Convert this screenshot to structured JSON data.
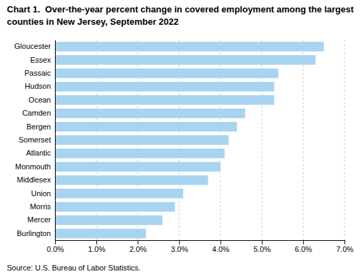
{
  "chart_data": {
    "type": "bar",
    "orientation": "horizontal",
    "title": "Chart 1.  Over-the-year percent change in covered employment among the largest",
    "subtitle": "counties in New Jersey, September 2022",
    "annotations": [
      "Source: U.S. Bureau of Labor Statistics."
    ],
    "categories": [
      "Burlington",
      "Mercer",
      "Morris",
      "Union",
      "Middlesex",
      "Monmouth",
      "Atlantic",
      "Somerset",
      "Bergen",
      "Camden",
      "Ocean",
      "Hudson",
      "Passaic",
      "Essex",
      "Gloucester"
    ],
    "values": [
      0.022,
      0.026,
      0.029,
      0.031,
      0.037,
      0.04,
      0.041,
      0.042,
      0.044,
      0.046,
      0.053,
      0.053,
      0.054,
      0.063,
      0.065
    ],
    "color": "#a8d4f0",
    "xlim": [
      0.0,
      0.07
    ],
    "xticks": [
      {
        "value": 0.0,
        "label": "0.0%"
      },
      {
        "value": 0.01,
        "label": "1.0%"
      },
      {
        "value": 0.02,
        "label": "2.0%"
      },
      {
        "value": 0.03,
        "label": "3.0%"
      },
      {
        "value": 0.04,
        "label": "4.0%"
      },
      {
        "value": 0.05,
        "label": "5.0%"
      },
      {
        "value": 0.06,
        "label": "6.0%"
      },
      {
        "value": 0.07,
        "label": "7.0%"
      }
    ],
    "grid": true
  }
}
